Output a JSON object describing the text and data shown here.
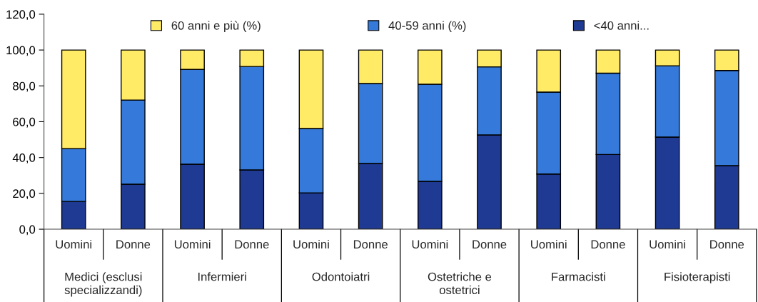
{
  "chart_data": {
    "type": "bar",
    "stacked": true,
    "categories": [
      "Uomini",
      "Donne",
      "Uomini",
      "Donne",
      "Uomini",
      "Donne",
      "Uomini",
      "Donne",
      "Uomini",
      "Donne",
      "Uomini",
      "Donne"
    ],
    "series": [
      {
        "name": "<40 anni...",
        "color": "#1f3a93",
        "values": [
          15.5,
          25.1,
          36.3,
          33.1,
          20.3,
          36.7,
          26.7,
          52.6,
          30.8,
          41.7,
          51.4,
          35.5
        ]
      },
      {
        "name": "40-59 anni (%)",
        "color": "#357ada",
        "values": [
          29.5,
          47.0,
          52.9,
          57.7,
          35.9,
          44.6,
          54.2,
          38.0,
          45.7,
          45.4,
          39.8,
          53.1
        ]
      },
      {
        "name": "60 anni e più (%)",
        "color": "#ffeb66",
        "values": [
          55.0,
          27.9,
          10.8,
          9.2,
          43.8,
          18.7,
          19.1,
          9.4,
          23.5,
          12.9,
          8.8,
          11.4
        ]
      }
    ],
    "annotations": [
      "Medici (esclusi\nspecializzandi)",
      "Infermieri",
      "Odontoiatri",
      "Ostetriche e\nostetrici",
      "Farmacisti",
      "Fisioterapisti"
    ],
    "ylim": [
      0,
      120
    ],
    "yticks": [
      {
        "value": 0,
        "label": "0,0"
      },
      {
        "value": 20,
        "label": "20,0"
      },
      {
        "value": 40,
        "label": "40,0"
      },
      {
        "value": 60,
        "label": "60,0"
      },
      {
        "value": 80,
        "label": "80,0"
      },
      {
        "value": 100,
        "label": "100,0"
      },
      {
        "value": 120,
        "label": "120,0"
      }
    ],
    "grid": false,
    "legend": "top"
  }
}
